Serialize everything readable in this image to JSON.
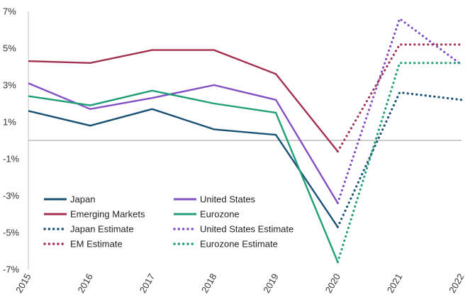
{
  "chart_data": {
    "type": "line",
    "title": "",
    "xlabel": "",
    "ylabel": "",
    "categories": [
      "2015",
      "2016",
      "2017",
      "2018",
      "2019",
      "2020",
      "2021",
      "2022"
    ],
    "ylim": [
      -7,
      7
    ],
    "y_ticks": [
      7,
      5,
      3,
      1,
      -1,
      -3,
      -5,
      -7
    ],
    "y_tick_labels": [
      "7%",
      "5%",
      "3%",
      "1%",
      "-1%",
      "-3%",
      "-5%",
      "-7%"
    ],
    "zero_line": true,
    "grid": false,
    "legend_position": "bottom-left",
    "series": [
      {
        "name": "Japan",
        "color": "#1a5276",
        "style": "solid",
        "values": [
          1.6,
          0.8,
          1.7,
          0.6,
          0.3,
          -4.7,
          null,
          null
        ]
      },
      {
        "name": "United States",
        "color": "#8250c4",
        "style": "solid",
        "values": [
          3.1,
          1.7,
          2.3,
          3.0,
          2.2,
          -3.4,
          null,
          null
        ]
      },
      {
        "name": "Emerging Markets",
        "color": "#a3304f",
        "style": "solid",
        "values": [
          4.3,
          4.2,
          4.9,
          4.9,
          3.6,
          -0.6,
          null,
          null
        ]
      },
      {
        "name": "Eurozone",
        "color": "#1f9e78",
        "style": "solid",
        "values": [
          2.4,
          1.9,
          2.7,
          2.0,
          1.5,
          -6.6,
          null,
          null
        ]
      },
      {
        "name": "Japan Estimate",
        "color": "#1a5276",
        "style": "dotted",
        "values": [
          null,
          null,
          null,
          null,
          null,
          -4.7,
          2.6,
          2.2
        ]
      },
      {
        "name": "United States Estimate",
        "color": "#8250c4",
        "style": "dotted",
        "values": [
          null,
          null,
          null,
          null,
          null,
          -3.4,
          6.6,
          4.1
        ]
      },
      {
        "name": "EM Estimate",
        "color": "#a3304f",
        "style": "dotted",
        "values": [
          null,
          null,
          null,
          null,
          null,
          -0.6,
          5.2,
          5.2
        ]
      },
      {
        "name": "Eurozone Estimate",
        "color": "#1f9e78",
        "style": "dotted",
        "values": [
          null,
          null,
          null,
          null,
          null,
          -6.6,
          4.2,
          4.2
        ]
      }
    ]
  }
}
